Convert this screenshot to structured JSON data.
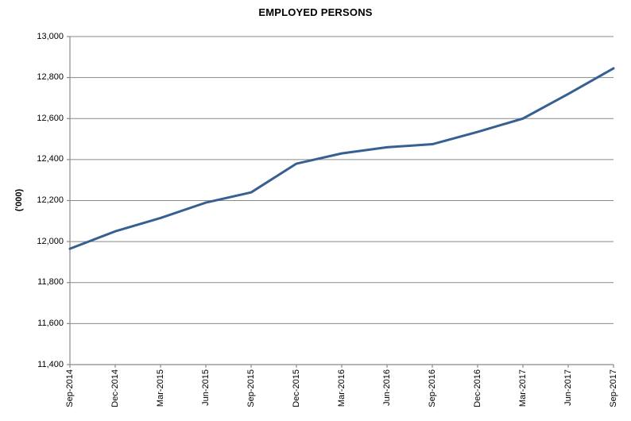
{
  "title": "EMPLOYED PERSONS",
  "y_axis_title": "('000)",
  "colors": {
    "line": "#366092",
    "gridline": "#898989",
    "axis": "#898989",
    "text": "#000000",
    "background": "#ffffff"
  },
  "chart_data": {
    "type": "line",
    "title": "EMPLOYED PERSONS",
    "xlabel": "",
    "ylabel": "('000)",
    "categories": [
      "Sep-2014",
      "Dec-2014",
      "Mar-2015",
      "Jun-2015",
      "Sep-2015",
      "Dec-2015",
      "Mar-2016",
      "Jun-2016",
      "Sep-2016",
      "Dec-2016",
      "Mar-2017",
      "Jun-2017",
      "Sep-2017"
    ],
    "values": [
      11965,
      12050,
      12115,
      12190,
      12240,
      12380,
      12430,
      12460,
      12475,
      12535,
      12600,
      12720,
      12845
    ],
    "ylim": [
      11400,
      13000
    ],
    "ytick_step": 200,
    "y_tick_labels": [
      "11,400",
      "11,600",
      "11,800",
      "12,000",
      "12,200",
      "12,400",
      "12,600",
      "12,800",
      "13,000"
    ],
    "grid": true,
    "legend_position": "none",
    "series_name": "Employed persons"
  }
}
